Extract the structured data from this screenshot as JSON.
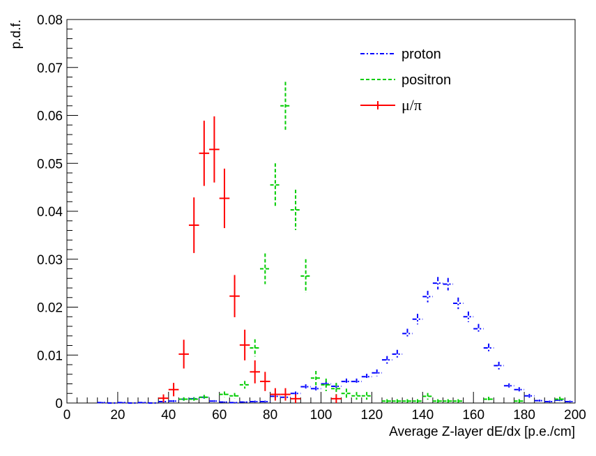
{
  "chart_data": {
    "type": "scatter",
    "xlabel": "Average Z-layer dE/dx [p.e./cm]",
    "ylabel": "p.d.f.",
    "xlim": [
      0,
      200
    ],
    "ylim": [
      0,
      0.08
    ],
    "x_ticks": [
      "0",
      "20",
      "40",
      "60",
      "80",
      "100",
      "120",
      "140",
      "160",
      "180",
      "200"
    ],
    "y_ticks": [
      "0",
      "0.01",
      "0.02",
      "0.03",
      "0.04",
      "0.05",
      "0.06",
      "0.07",
      "0.08"
    ],
    "grid": false,
    "legend_position": "top-right",
    "series": [
      {
        "name": "proton",
        "color": "#0000ff",
        "line_style": "dash-dot",
        "x": [
          14,
          18,
          22,
          26,
          30,
          34,
          38,
          42,
          46,
          50,
          54,
          58,
          62,
          66,
          70,
          74,
          78,
          82,
          86,
          90,
          94,
          98,
          102,
          106,
          110,
          114,
          118,
          122,
          126,
          130,
          134,
          138,
          142,
          146,
          150,
          154,
          158,
          162,
          166,
          170,
          174,
          178,
          182,
          186,
          190,
          194,
          198
        ],
        "y": [
          0.0001,
          0.0,
          0.0001,
          0.0,
          0.0001,
          0.0,
          0.0003,
          0.0004,
          0.0008,
          0.0009,
          0.0012,
          0.0004,
          0.0002,
          0.0001,
          0.0002,
          0.0003,
          0.0003,
          0.0014,
          0.0012,
          0.002,
          0.0034,
          0.003,
          0.004,
          0.0035,
          0.0045,
          0.0045,
          0.0055,
          0.0063,
          0.009,
          0.0102,
          0.0145,
          0.0175,
          0.0222,
          0.025,
          0.0248,
          0.0208,
          0.018,
          0.0155,
          0.0115,
          0.0078,
          0.0036,
          0.0028,
          0.0015,
          0.0005,
          0.0003,
          0.0006,
          0.0003
        ],
        "yerr": [
          0.0001,
          0.0,
          0.0001,
          0.0,
          0.0001,
          0.0,
          0.0002,
          0.0002,
          0.0003,
          0.0003,
          0.0003,
          0.0002,
          0.0001,
          0.0001,
          0.0001,
          0.0002,
          0.0002,
          0.0003,
          0.0003,
          0.0004,
          0.0005,
          0.0005,
          0.0005,
          0.0005,
          0.0006,
          0.0006,
          0.0006,
          0.0007,
          0.0008,
          0.0009,
          0.001,
          0.0011,
          0.0012,
          0.0013,
          0.0013,
          0.0012,
          0.0011,
          0.001,
          0.0009,
          0.0008,
          0.0005,
          0.0005,
          0.0004,
          0.0002,
          0.0002,
          0.0002,
          0.0002
        ]
      },
      {
        "name": "positron",
        "color": "#00cc00",
        "line_style": "dashed",
        "x": [
          46,
          50,
          54,
          62,
          66,
          70,
          74,
          78,
          82,
          86,
          90,
          94,
          98,
          102,
          106,
          110,
          114,
          118,
          126,
          130,
          134,
          138,
          142,
          146,
          150,
          154,
          166,
          178,
          194
        ],
        "y": [
          0.0008,
          0.0008,
          0.0012,
          0.0018,
          0.0015,
          0.0038,
          0.0115,
          0.028,
          0.0455,
          0.062,
          0.0403,
          0.0265,
          0.0052,
          0.0038,
          0.003,
          0.002,
          0.0015,
          0.0015,
          0.0004,
          0.0004,
          0.0004,
          0.0004,
          0.0014,
          0.0004,
          0.0004,
          0.0004,
          0.0008,
          0.0004,
          0.0008
        ],
        "yerr": [
          0.0004,
          0.0004,
          0.0005,
          0.0006,
          0.0006,
          0.0008,
          0.0018,
          0.0032,
          0.0045,
          0.005,
          0.0042,
          0.0035,
          0.0015,
          0.0013,
          0.0012,
          0.001,
          0.0008,
          0.0008,
          0.0004,
          0.0004,
          0.0004,
          0.0004,
          0.0007,
          0.0004,
          0.0004,
          0.0004,
          0.0005,
          0.0004,
          0.0005
        ]
      },
      {
        "name": "μ/π",
        "color": "#ff0000",
        "line_style": "solid",
        "x": [
          38,
          42,
          46,
          50,
          54,
          58,
          62,
          66,
          70,
          74,
          78,
          82,
          86,
          90,
          106
        ],
        "y": [
          0.001,
          0.0028,
          0.0102,
          0.0371,
          0.0521,
          0.0529,
          0.0427,
          0.0223,
          0.0121,
          0.0065,
          0.0045,
          0.0018,
          0.0018,
          0.0009,
          0.0009
        ],
        "yerr": [
          0.0008,
          0.0014,
          0.003,
          0.0058,
          0.0068,
          0.0069,
          0.0062,
          0.0044,
          0.0032,
          0.0024,
          0.002,
          0.0013,
          0.0013,
          0.0009,
          0.0009
        ]
      }
    ]
  }
}
